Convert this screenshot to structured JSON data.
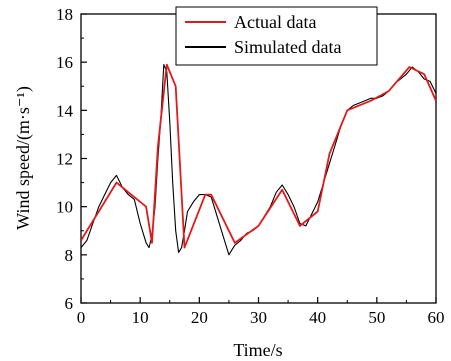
{
  "chart_data": {
    "type": "line",
    "xlabel": "Time/s",
    "ylabel": "Wind speed/(m·s⁻¹)",
    "xlim": [
      0,
      60
    ],
    "ylim": [
      6,
      18
    ],
    "xticks": [
      "0",
      "10",
      "20",
      "30",
      "40",
      "50",
      "60"
    ],
    "yticks": [
      "6",
      "8",
      "10",
      "12",
      "14",
      "16",
      "18"
    ],
    "grid": false,
    "legend_position": "top-right",
    "colors": {
      "actual": "#e31a1c",
      "simulated": "#000000"
    },
    "series": [
      {
        "name": "Actual data",
        "x": [
          0,
          6,
          11,
          12,
          13,
          14.5,
          16,
          17.5,
          21,
          22,
          26,
          30,
          34,
          37,
          40,
          42,
          45,
          49,
          52,
          55.5,
          58,
          60
        ],
        "values": [
          8.6,
          11.0,
          10.0,
          8.5,
          12.5,
          15.9,
          15.0,
          8.3,
          10.5,
          10.5,
          8.5,
          9.2,
          10.7,
          9.2,
          9.8,
          12.2,
          14.0,
          14.4,
          14.8,
          15.8,
          15.5,
          14.4
        ]
      },
      {
        "name": "Simulated data",
        "x": [
          0,
          1,
          2,
          3,
          4,
          5,
          6,
          7,
          8,
          9,
          10,
          11,
          11.5,
          12,
          12.5,
          13,
          13.5,
          14,
          14.5,
          15,
          15.5,
          16,
          16.5,
          17,
          17.5,
          18,
          19,
          20,
          21,
          22,
          23,
          24,
          25,
          26,
          27,
          28,
          29,
          30,
          31,
          32,
          33,
          34,
          35,
          36,
          37,
          38,
          39,
          40,
          41,
          42,
          43,
          44,
          45,
          46,
          47,
          48,
          49,
          50,
          51,
          52,
          53,
          54,
          55,
          56,
          57,
          58,
          59,
          60
        ],
        "values": [
          8.3,
          8.6,
          9.3,
          10.0,
          10.5,
          11.0,
          11.3,
          10.8,
          10.5,
          10.3,
          9.3,
          8.5,
          8.3,
          8.8,
          10.0,
          12.0,
          13.7,
          15.9,
          15.6,
          13.5,
          11.0,
          9.0,
          8.1,
          8.3,
          9.0,
          9.8,
          10.2,
          10.5,
          10.5,
          10.4,
          9.6,
          8.8,
          8.0,
          8.4,
          8.6,
          8.9,
          9.0,
          9.2,
          9.6,
          10.0,
          10.6,
          10.9,
          10.5,
          10.0,
          9.3,
          9.2,
          9.7,
          10.2,
          11.0,
          11.8,
          12.6,
          13.4,
          14.0,
          14.2,
          14.3,
          14.4,
          14.5,
          14.5,
          14.6,
          14.8,
          15.1,
          15.3,
          15.5,
          15.8,
          15.6,
          15.3,
          15.2,
          14.7
        ]
      }
    ]
  }
}
